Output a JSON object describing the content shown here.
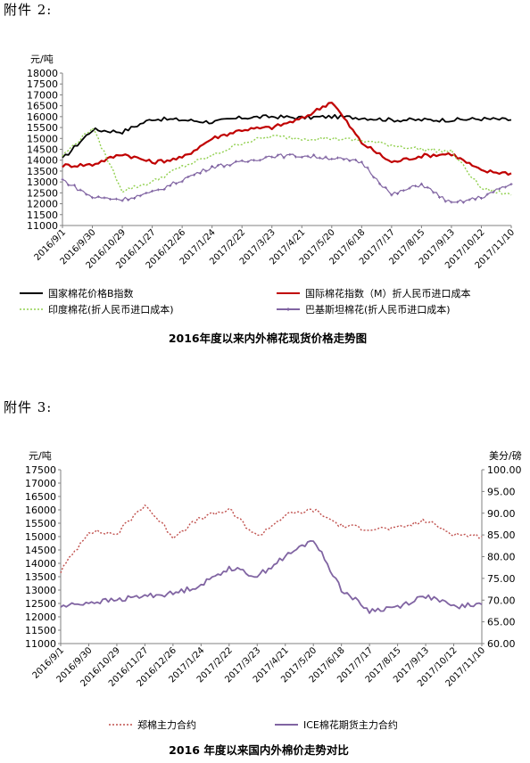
{
  "annex2_label": "附件 2:",
  "annex3_label": "附件 3:",
  "chart_data": [
    {
      "type": "line",
      "title": "2016年度以来内外棉花现货价格走势图",
      "ylabel": "元/吨",
      "ylim": [
        11000,
        18000
      ],
      "yticks": [
        "11000",
        "11500",
        "12000",
        "12500",
        "13000",
        "13500",
        "14000",
        "14500",
        "15000",
        "15500",
        "16000",
        "16500",
        "17000",
        "17500",
        "18000"
      ],
      "categories": [
        "2016/9/1",
        "2016/9/30",
        "2016/10/29",
        "2016/11/27",
        "2016/12/26",
        "2017/1/24",
        "2017/2/22",
        "2017/3/23",
        "2017/4/21",
        "2017/5/20",
        "2017/6/18",
        "2017/7/17",
        "2017/8/15",
        "2017/9/13",
        "2017/10/12",
        "2017/11/10"
      ],
      "grid": false,
      "legend": "bottom",
      "series": [
        {
          "name": "国家棉花价格B指数",
          "color": "#000000",
          "style": "solid",
          "values": [
            14050,
            15400,
            15300,
            15900,
            15850,
            15750,
            15950,
            16000,
            15950,
            16000,
            15950,
            15850,
            15850,
            15850,
            15900,
            15850
          ]
        },
        {
          "name": "国际棉花指数（M）折人民币进口成本",
          "color": "#c00000",
          "style": "solid",
          "values": [
            13750,
            13800,
            14300,
            13900,
            14100,
            15000,
            15400,
            15500,
            15900,
            16700,
            14800,
            13900,
            14200,
            14300,
            13500,
            13400
          ]
        },
        {
          "name": "印度棉花(折人民币进口成本)",
          "color": "#92d050",
          "style": "dotted",
          "values": [
            14200,
            15500,
            12600,
            13000,
            13700,
            14200,
            14800,
            15100,
            15000,
            15000,
            14900,
            14700,
            14500,
            14400,
            12700,
            12400
          ]
        },
        {
          "name": "巴基斯坦棉花(折人民币进口成本)",
          "color": "#8064a2",
          "style": "marker",
          "values": [
            13100,
            12300,
            12200,
            12500,
            13100,
            13700,
            13900,
            14200,
            14200,
            14100,
            13900,
            12400,
            12900,
            12000,
            12300,
            12900
          ]
        }
      ]
    },
    {
      "type": "line",
      "title": "2016 年度以来国内外棉价走势对比",
      "ylabel": "元/吨",
      "y2label": "美分/磅",
      "ylim": [
        11000,
        17500
      ],
      "y2lim": [
        60,
        100
      ],
      "yticks": [
        "11000",
        "11500",
        "12000",
        "12500",
        "13000",
        "13500",
        "14000",
        "14500",
        "15000",
        "15500",
        "16000",
        "16500",
        "17000",
        "17500"
      ],
      "y2ticks": [
        "60.00",
        "65.00",
        "70.00",
        "75.00",
        "80.00",
        "85.00",
        "90.00",
        "95.00",
        "100.00"
      ],
      "categories": [
        "2016/9/1",
        "2016/9/30",
        "2016/10/29",
        "2016/11/27",
        "2016/12/26",
        "2017/1/24",
        "2017/2/22",
        "2017/3/23",
        "2017/4/21",
        "2017/5/20",
        "2017/6/18",
        "2017/7/17",
        "2017/8/15",
        "2017/9/13",
        "2017/10/12",
        "2017/11/10"
      ],
      "grid": false,
      "legend": "bottom",
      "series": [
        {
          "name": "郑棉主力合约",
          "axis": "left",
          "color": "#c0504d",
          "style": "dotted",
          "values": [
            13700,
            15200,
            15100,
            16200,
            15000,
            15700,
            16000,
            15000,
            15800,
            16000,
            15400,
            15300,
            15300,
            15600,
            15100,
            15000
          ]
        },
        {
          "name": "ICE棉花期货主力合约",
          "axis": "right",
          "color": "#8064a2",
          "style": "solid",
          "values": [
            68.5,
            69.5,
            70.0,
            71.0,
            71.5,
            73.5,
            77.5,
            75.5,
            80.0,
            84.0,
            72.5,
            67.5,
            68.5,
            71.0,
            68.5,
            69.0
          ]
        }
      ]
    }
  ]
}
